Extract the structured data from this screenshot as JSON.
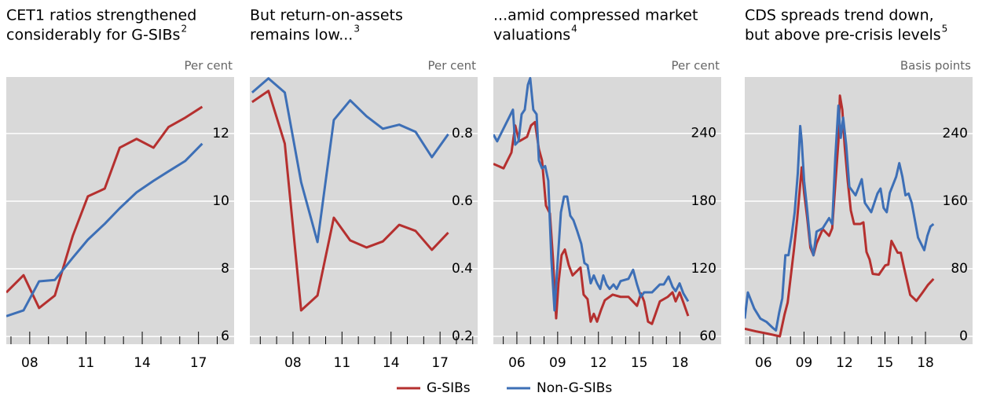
{
  "chart_data": [
    {
      "type": "line",
      "title": [
        "CET1 ratios strengthened",
        "considerably for G-SIBs"
      ],
      "footnote": "2",
      "y_unit": "Per cent",
      "xlim": [
        2006.75,
        2018.9
      ],
      "ylim": [
        5.77,
        13.67
      ],
      "yticks": [
        6,
        8,
        10,
        12
      ],
      "grid": true,
      "xticks": [
        {
          "value": 2008,
          "label": "08"
        },
        {
          "value": 2011,
          "label": "11"
        },
        {
          "value": 2014,
          "label": "14"
        },
        {
          "value": 2017,
          "label": "17"
        }
      ],
      "xminorticks": [
        2007,
        2009,
        2010,
        2012,
        2013,
        2015,
        2016,
        2018
      ],
      "series": [
        {
          "name": "G-SIBs",
          "color": "#b5302f",
          "x": [
            2006.75,
            2007.67,
            2008.5,
            2009.34,
            2010.3,
            2011.1,
            2012.0,
            2012.8,
            2013.7,
            2014.6,
            2015.4,
            2016.3,
            2017.2
          ],
          "values": [
            7.3,
            7.81,
            6.84,
            7.21,
            8.98,
            10.14,
            10.37,
            11.58,
            11.84,
            11.58,
            12.19,
            12.47,
            12.79
          ]
        },
        {
          "name": "Non-G-SIBs",
          "color": "#3d6fb6",
          "x": [
            2006.75,
            2007.67,
            2008.5,
            2009.34,
            2010.3,
            2011.1,
            2012.0,
            2012.8,
            2013.7,
            2014.6,
            2015.4,
            2016.3,
            2017.2
          ],
          "values": [
            6.6,
            6.77,
            7.63,
            7.67,
            8.33,
            8.86,
            9.33,
            9.79,
            10.26,
            10.6,
            10.88,
            11.19,
            11.7
          ]
        }
      ]
    },
    {
      "type": "line",
      "title": [
        "But return-on-assets",
        "remains low..."
      ],
      "footnote": "3",
      "y_unit": "Per cent",
      "xlim": [
        2005.36,
        2019.3
      ],
      "ylim": [
        0.177,
        0.967
      ],
      "yticks": [
        0.2,
        0.4,
        0.6,
        0.8
      ],
      "grid": true,
      "xticks": [
        {
          "value": 2008,
          "label": "08"
        },
        {
          "value": 2011,
          "label": "11"
        },
        {
          "value": 2014,
          "label": "14"
        },
        {
          "value": 2017,
          "label": "17"
        }
      ],
      "xminorticks": [
        2006,
        2007,
        2009,
        2010,
        2012,
        2013,
        2015,
        2016,
        2018,
        2019
      ],
      "series": [
        {
          "name": "G-SIBs",
          "color": "#b5302f",
          "x": [
            2005.5,
            2006.5,
            2007.5,
            2008.5,
            2009.5,
            2010.5,
            2011.5,
            2012.5,
            2013.5,
            2014.5,
            2015.5,
            2016.5,
            2017.5
          ],
          "values": [
            0.893,
            0.926,
            0.77,
            0.277,
            0.321,
            0.551,
            0.484,
            0.463,
            0.481,
            0.53,
            0.512,
            0.456,
            0.507
          ]
        },
        {
          "name": "Non-G-SIBs",
          "color": "#3d6fb6",
          "x": [
            2005.5,
            2006.5,
            2007.5,
            2008.5,
            2009.5,
            2010.5,
            2011.5,
            2012.5,
            2013.5,
            2014.5,
            2015.5,
            2016.5,
            2017.5
          ],
          "values": [
            0.921,
            0.963,
            0.921,
            0.656,
            0.479,
            0.84,
            0.898,
            0.851,
            0.814,
            0.826,
            0.805,
            0.73,
            0.798
          ]
        }
      ]
    },
    {
      "type": "line",
      "title": [
        "...amid compressed market",
        "valuations"
      ],
      "footnote": "4",
      "y_unit": "Per cent",
      "xlim": [
        2004.27,
        2021.03
      ],
      "ylim": [
        53,
        290
      ],
      "yticks": [
        60,
        120,
        180,
        240
      ],
      "grid": true,
      "xticks": [
        {
          "value": 2006,
          "label": "06"
        },
        {
          "value": 2009,
          "label": "09"
        },
        {
          "value": 2012,
          "label": "12"
        },
        {
          "value": 2015,
          "label": "15"
        },
        {
          "value": 2018,
          "label": "18"
        }
      ],
      "xminorticks": [
        2005,
        2007,
        2008,
        2010,
        2011,
        2013,
        2014,
        2016,
        2017
      ],
      "series": [
        {
          "name": "G-SIBs",
          "color": "#b5302f",
          "x": [
            2004.27,
            2005.02,
            2005.6,
            2005.88,
            2006.17,
            2006.75,
            2007.04,
            2007.33,
            2007.62,
            2007.85,
            2008.14,
            2008.43,
            2008.66,
            2008.89,
            2009.06,
            2009.29,
            2009.53,
            2009.82,
            2010.1,
            2010.68,
            2010.91,
            2011.2,
            2011.43,
            2011.66,
            2011.9,
            2012.18,
            2012.47,
            2013.05,
            2013.63,
            2014.21,
            2014.84,
            2015.13,
            2015.36,
            2015.65,
            2015.94,
            2016.23,
            2016.52,
            2017.1,
            2017.45,
            2017.68,
            2017.97,
            2018.25,
            2018.6
          ],
          "values": [
            213,
            209,
            223,
            247,
            233,
            237,
            247,
            250,
            226,
            216,
            176,
            169,
            128,
            76,
            107,
            132,
            137,
            123,
            114,
            121,
            97,
            93,
            73,
            80,
            73,
            83,
            92,
            97,
            95,
            95,
            87,
            98,
            91,
            73,
            71,
            81,
            91,
            95,
            99,
            91,
            99,
            90,
            78
          ]
        },
        {
          "name": "Non-G-SIBs",
          "color": "#3d6fb6",
          "x": [
            2004.27,
            2004.55,
            2005.13,
            2005.42,
            2005.71,
            2005.88,
            2006.12,
            2006.35,
            2006.58,
            2006.81,
            2006.98,
            2007.21,
            2007.45,
            2007.62,
            2007.85,
            2008.08,
            2008.31,
            2008.54,
            2008.77,
            2009.01,
            2009.24,
            2009.47,
            2009.7,
            2009.93,
            2010.16,
            2010.45,
            2010.74,
            2010.97,
            2011.2,
            2011.43,
            2011.66,
            2011.9,
            2012.13,
            2012.36,
            2012.59,
            2012.82,
            2013.11,
            2013.34,
            2013.63,
            2014.21,
            2014.55,
            2014.84,
            2015.13,
            2015.36,
            2015.94,
            2016.52,
            2016.81,
            2017.16,
            2017.45,
            2017.68,
            2017.97,
            2018.25,
            2018.6
          ],
          "values": [
            239,
            233,
            247,
            254,
            261,
            230,
            233,
            257,
            261,
            283,
            289,
            261,
            257,
            216,
            209,
            211,
            198,
            128,
            83,
            128,
            170,
            184,
            184,
            167,
            163,
            153,
            142,
            125,
            123,
            107,
            114,
            107,
            102,
            114,
            106,
            102,
            106,
            102,
            109,
            111,
            119,
            106,
            95,
            99,
            99,
            106,
            106,
            113,
            104,
            100,
            107,
            98,
            91
          ]
        }
      ]
    },
    {
      "type": "line",
      "title": [
        "CDS spreads trend down,",
        "but above pre-crisis levels"
      ],
      "footnote": "5",
      "y_unit": "Basis points",
      "xlim": [
        2004.61,
        2021.49
      ],
      "ylim": [
        -9.3,
        307
      ],
      "yticks": [
        0,
        80,
        160,
        240
      ],
      "grid": true,
      "xticks": [
        {
          "value": 2006,
          "label": "06"
        },
        {
          "value": 2009,
          "label": "09"
        },
        {
          "value": 2012,
          "label": "12"
        },
        {
          "value": 2015,
          "label": "15"
        },
        {
          "value": 2018,
          "label": "18"
        }
      ],
      "xminorticks": [
        2005,
        2007,
        2008,
        2010,
        2011,
        2013,
        2014,
        2016,
        2017
      ],
      "series": [
        {
          "name": "G-SIBs",
          "color": "#b5302f",
          "x": [
            2004.61,
            2005.42,
            2006.35,
            2007.21,
            2007.56,
            2007.79,
            2008.02,
            2008.25,
            2008.49,
            2008.72,
            2008.83,
            2009.01,
            2009.24,
            2009.47,
            2009.7,
            2009.93,
            2010.39,
            2010.86,
            2011.09,
            2011.32,
            2011.55,
            2011.66,
            2011.84,
            2012.01,
            2012.24,
            2012.47,
            2012.71,
            2013.17,
            2013.4,
            2013.63,
            2013.86,
            2014.09,
            2014.55,
            2015.02,
            2015.25,
            2015.48,
            2015.94,
            2016.17,
            2016.4,
            2016.87,
            2017.33,
            2017.79,
            2018.19,
            2018.6
          ],
          "values": [
            9,
            6,
            3,
            0,
            26,
            40,
            71,
            102,
            138,
            180,
            200,
            170,
            140,
            105,
            96,
            110,
            127,
            119,
            128,
            180,
            231,
            285,
            268,
            226,
            184,
            149,
            133,
            133,
            135,
            100,
            91,
            74,
            73,
            84,
            85,
            113,
            99,
            99,
            82,
            49,
            42,
            52,
            61,
            68
          ]
        },
        {
          "name": "Non-G-SIBs",
          "color": "#3d6fb6",
          "x": [
            2004.61,
            2004.84,
            2005.31,
            2005.77,
            2006.23,
            2006.69,
            2006.92,
            2007.16,
            2007.39,
            2007.62,
            2007.85,
            2008.08,
            2008.31,
            2008.54,
            2008.72,
            2008.83,
            2009.01,
            2009.24,
            2009.47,
            2009.7,
            2009.93,
            2010.39,
            2010.86,
            2011.09,
            2011.32,
            2011.55,
            2011.72,
            2011.9,
            2012.13,
            2012.36,
            2012.82,
            2013.28,
            2013.51,
            2013.98,
            2014.44,
            2014.67,
            2014.9,
            2015.13,
            2015.36,
            2015.83,
            2016.06,
            2016.29,
            2016.52,
            2016.75,
            2016.98,
            2017.21,
            2017.45,
            2017.91,
            2018.14,
            2018.37,
            2018.6
          ],
          "values": [
            21,
            52,
            33,
            21,
            17,
            10,
            7,
            28,
            45,
            96,
            96,
            119,
            147,
            193,
            249,
            231,
            184,
            149,
            110,
            96,
            124,
            128,
            140,
            133,
            212,
            273,
            235,
            259,
            226,
            177,
            167,
            186,
            158,
            147,
            169,
            175,
            152,
            147,
            170,
            189,
            205,
            189,
            167,
            169,
            158,
            138,
            117,
            102,
            119,
            130,
            133
          ]
        }
      ]
    }
  ]
}
